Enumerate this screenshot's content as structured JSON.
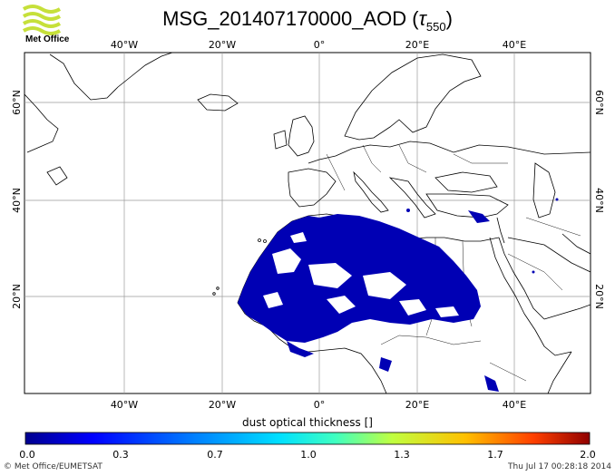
{
  "header": {
    "title_main": "MSG_201407170000_AOD (",
    "title_symbol": "τ",
    "title_sub": "550",
    "title_close": ")",
    "logo_text": "Met Office"
  },
  "map": {
    "top_lon_labels": [
      "40°W",
      "20°W",
      "0°",
      "20°E",
      "40°E"
    ],
    "bottom_lon_labels": [
      "40°W",
      "20°W",
      "0°",
      "20°E",
      "40°E"
    ],
    "left_lat_labels": [
      "60°N",
      "40°N",
      "20°N"
    ],
    "right_lat_labels": [
      "60°N",
      "40°N",
      "20°N"
    ],
    "lon_range": [
      -60,
      55
    ],
    "lat_range": [
      0,
      70
    ],
    "plume_color": "#0000b4",
    "grid_color": "#9a9a9a"
  },
  "colorbar": {
    "title": "dust optical thickness []",
    "ticks": [
      "0.0",
      "0.3",
      "0.7",
      "1.0",
      "1.3",
      "1.7",
      "2.0"
    ],
    "colors": [
      "#00008f",
      "#0000ff",
      "#00a0ff",
      "#40ffc0",
      "#c0ff40",
      "#ffa000",
      "#ff2000",
      "#800000"
    ]
  },
  "footer": {
    "credit": "© Met Office/EUMETSAT",
    "timestamp": "Thu Jul 17 00:28:18 2014"
  }
}
